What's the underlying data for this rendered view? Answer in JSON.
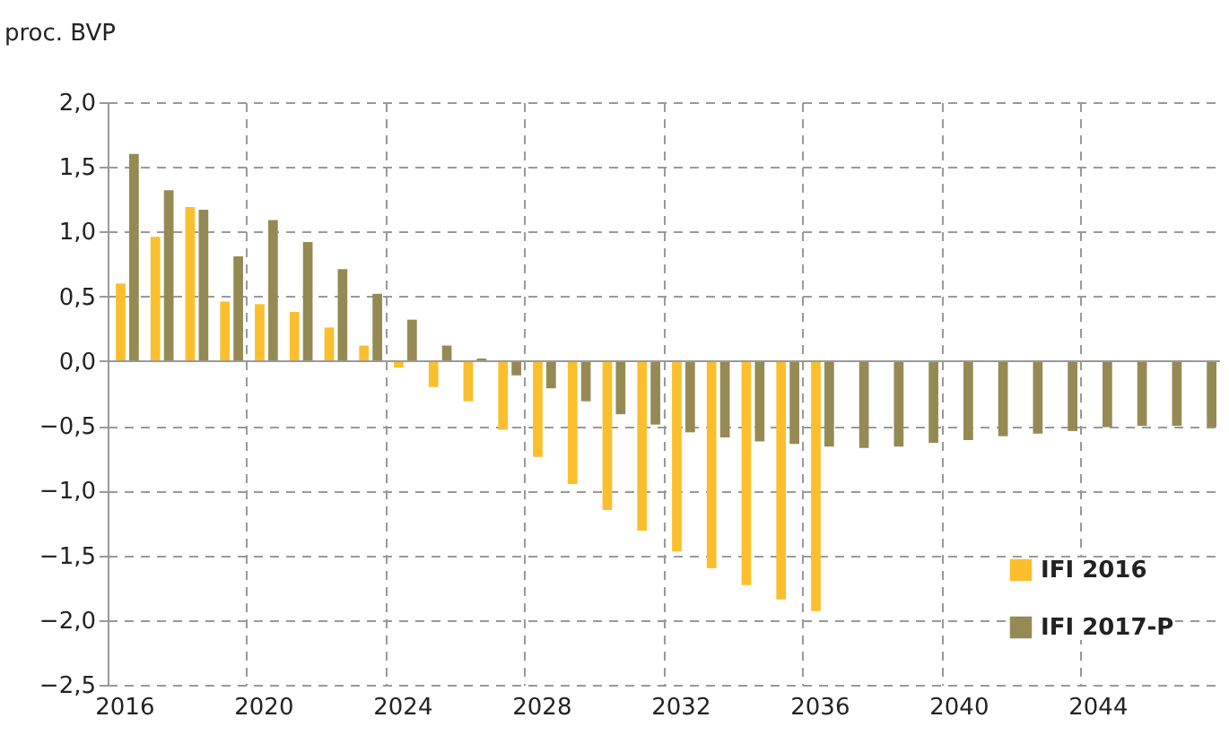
{
  "chart_data": {
    "type": "bar",
    "ylabel": "proc. BVP",
    "categories": [
      "2016",
      null,
      null,
      null,
      "2020",
      null,
      null,
      null,
      "2024",
      null,
      null,
      null,
      "2028",
      null,
      null,
      null,
      "2032",
      null,
      null,
      null,
      "2036",
      null,
      null,
      null,
      "2040",
      null,
      null,
      null,
      "2044",
      null,
      null,
      null
    ],
    "series": [
      {
        "name": "IFI 2016",
        "color": "#fbbf2e",
        "values": [
          0.6,
          0.96,
          1.19,
          0.46,
          0.44,
          0.38,
          0.26,
          0.12,
          -0.05,
          -0.2,
          -0.31,
          -0.53,
          -0.74,
          -0.95,
          -1.15,
          -1.31,
          -1.47,
          -1.6,
          -1.73,
          -1.84,
          -1.93,
          null,
          null,
          null,
          null,
          null,
          null,
          null,
          null,
          null,
          null,
          null
        ]
      },
      {
        "name": "IFI 2017-P",
        "color": "#968a54",
        "values": [
          1.6,
          1.32,
          1.17,
          0.81,
          1.09,
          0.92,
          0.71,
          0.52,
          0.32,
          0.12,
          0.02,
          -0.11,
          -0.21,
          -0.31,
          -0.41,
          -0.49,
          -0.55,
          -0.59,
          -0.62,
          -0.64,
          -0.66,
          -0.67,
          -0.66,
          -0.63,
          -0.61,
          -0.58,
          -0.56,
          -0.54,
          -0.51,
          -0.5,
          -0.5,
          -0.51
        ]
      }
    ],
    "ylim": [
      -2.5,
      2.0
    ],
    "yticks": [
      {
        "value": -2.5,
        "label": "−2,5"
      },
      {
        "value": -2.0,
        "label": "−2,0"
      },
      {
        "value": -1.5,
        "label": "−1,5"
      },
      {
        "value": -1.0,
        "label": "−1,0"
      },
      {
        "value": -0.5,
        "label": "−0,5"
      },
      {
        "value": 0,
        "label": "0,0"
      },
      {
        "value": 0.5,
        "label": "0,5"
      },
      {
        "value": 1.0,
        "label": "1,0"
      },
      {
        "value": 1.5,
        "label": "1,5"
      },
      {
        "value": 2.0,
        "label": "2,0"
      }
    ],
    "grid": true,
    "legend": "bottom right"
  }
}
